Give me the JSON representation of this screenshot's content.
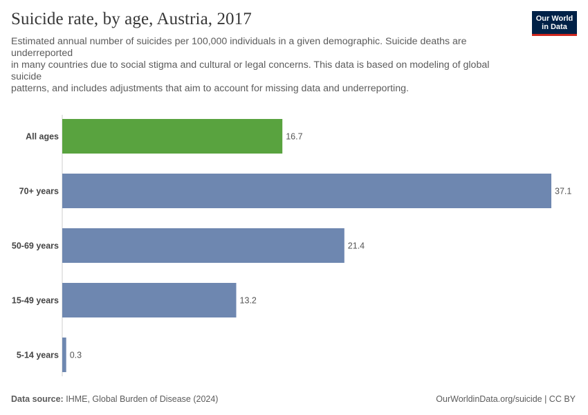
{
  "header": {
    "title": "Suicide rate, by age, Austria, 2017",
    "subtitle_lines": [
      "Estimated annual number of suicides per 100,000 individuals in a given demographic. Suicide deaths are underreported",
      "in many countries due to social stigma and cultural or legal concerns. This data is based on modeling of global suicide",
      "patterns, and includes adjustments that aim to account for missing data and underreporting."
    ]
  },
  "logo": {
    "line1": "Our World",
    "line2": "in Data"
  },
  "footer": {
    "source_label": "Data source:",
    "source_text": "IHME, Global Burden of Disease (2024)",
    "url_text": "OurWorldinData.org/suicide | CC BY"
  },
  "colors": {
    "highlight": "#59a33f",
    "bar": "#6e87b0",
    "axis": "#cccccc"
  },
  "chart_data": {
    "type": "bar",
    "orientation": "horizontal",
    "title": "Suicide rate, by age, Austria, 2017",
    "categories": [
      "All ages",
      "70+ years",
      "50-69 years",
      "15-49 years",
      "5-14 years"
    ],
    "values": [
      16.7,
      37.1,
      21.4,
      13.2,
      0.3
    ],
    "value_labels": [
      "16.7",
      "37.1",
      "21.4",
      "13.2",
      "0.3"
    ],
    "highlight": [
      "All ages"
    ],
    "xlim": [
      0,
      37.1
    ],
    "xlabel": "",
    "ylabel": ""
  }
}
